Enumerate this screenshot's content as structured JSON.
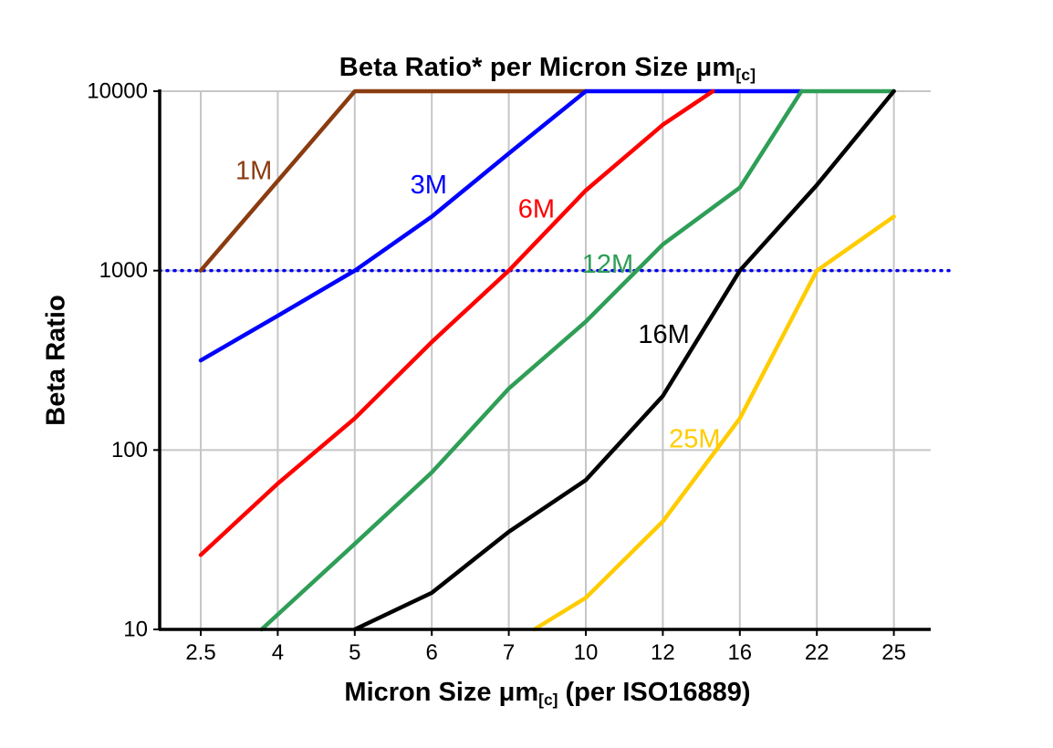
{
  "chart_data": {
    "type": "line",
    "title": {
      "main": "Beta Ratio* per Micron Size μm",
      "sub": "[c]"
    },
    "x_axis": {
      "label_main": "Micron Size μm",
      "label_sub": "[c]",
      "label_post": " (per ISO16889)",
      "categories": [
        "2.5",
        "4",
        "5",
        "6",
        "7",
        "10",
        "12",
        "16",
        "22",
        "25"
      ]
    },
    "y_axis": {
      "label": "Beta Ratio",
      "scale": "log",
      "ticks": [
        "10",
        "100",
        "1000",
        "10000"
      ],
      "range": [
        10,
        10000
      ]
    },
    "reference_line": {
      "value": 1000,
      "color": "#0000ee",
      "style": "dotted"
    },
    "colors": {
      "grid": "#c6c6c6",
      "axis": "#000000",
      "background": "#ffffff"
    },
    "series": [
      {
        "name": "1M",
        "color": "#8a3c10",
        "points": [
          [
            0,
            1000
          ],
          [
            2,
            10000
          ],
          [
            5,
            10000
          ]
        ],
        "label_at": [
          0.45,
          3600
        ]
      },
      {
        "name": "3M",
        "color": "#0000ff",
        "points": [
          [
            0,
            316
          ],
          [
            1,
            560
          ],
          [
            2,
            1000
          ],
          [
            3,
            2000
          ],
          [
            4,
            4500
          ],
          [
            5,
            10000
          ],
          [
            7.8,
            10000
          ]
        ],
        "label_at": [
          2.72,
          3000
        ]
      },
      {
        "name": "6M",
        "color": "#ff0000",
        "points": [
          [
            0,
            26
          ],
          [
            1,
            65
          ],
          [
            2,
            150
          ],
          [
            3,
            400
          ],
          [
            4,
            1000
          ],
          [
            5,
            2800
          ],
          [
            6,
            6500
          ],
          [
            6.65,
            10000
          ]
        ],
        "label_at": [
          4.12,
          2200
        ]
      },
      {
        "name": "12M",
        "color": "#2f9e57",
        "points": [
          [
            0.79,
            10
          ],
          [
            2,
            30
          ],
          [
            3,
            75
          ],
          [
            4,
            220
          ],
          [
            5,
            520
          ],
          [
            6,
            1400
          ],
          [
            7,
            2900
          ],
          [
            7.8,
            10000
          ],
          [
            9,
            10000
          ]
        ],
        "label_at": [
          4.95,
          1080
        ]
      },
      {
        "name": "16M",
        "color": "#000000",
        "points": [
          [
            2,
            10
          ],
          [
            3,
            16
          ],
          [
            4,
            35
          ],
          [
            5,
            68
          ],
          [
            6,
            200
          ],
          [
            7,
            1000
          ],
          [
            8,
            3000
          ],
          [
            9,
            10000
          ]
        ],
        "label_at": [
          5.68,
          440
        ]
      },
      {
        "name": "25M",
        "color": "#ffcc00",
        "points": [
          [
            4.33,
            10
          ],
          [
            5,
            15
          ],
          [
            6,
            40
          ],
          [
            7,
            150
          ],
          [
            8,
            1000
          ],
          [
            9,
            2000
          ]
        ],
        "label_at": [
          6.08,
          115
        ]
      }
    ]
  }
}
